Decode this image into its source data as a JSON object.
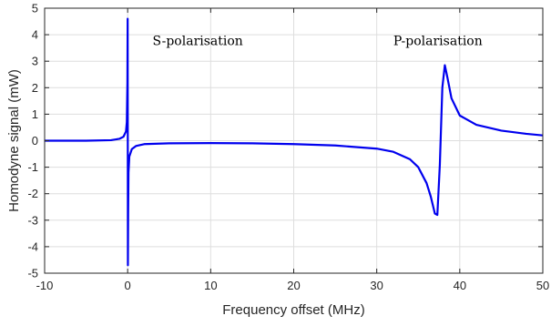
{
  "chart_data": {
    "type": "line",
    "title": "",
    "xlabel": "Frequency offset (MHz)",
    "ylabel": "Homodyne signal (mW)",
    "xlim": [
      -10,
      50
    ],
    "ylim": [
      -5,
      5
    ],
    "xticks": [
      -10,
      0,
      10,
      20,
      30,
      40,
      50
    ],
    "yticks": [
      -5,
      -4,
      -3,
      -2,
      -1,
      0,
      1,
      2,
      3,
      4,
      5
    ],
    "grid": true,
    "legend": "none",
    "annotations": [
      {
        "text": "S-polarisation",
        "x": 3,
        "y": 3.6
      },
      {
        "text": "P-polarisation",
        "x": 32,
        "y": 3.6
      }
    ],
    "series": [
      {
        "color": "#0000ee",
        "x": [
          -10,
          -5,
          -2,
          -1,
          -0.5,
          -0.2,
          -0.1,
          -0.03,
          0,
          0.03,
          0.06,
          0.1,
          0.2,
          0.5,
          1,
          2,
          5,
          10,
          15,
          20,
          25,
          30,
          32,
          34,
          35,
          36,
          36.5,
          37,
          37.3,
          37.6,
          37.9,
          38.2,
          38.5,
          39,
          40,
          42,
          45,
          48,
          50
        ],
        "y": [
          0.0,
          0.0,
          0.02,
          0.07,
          0.15,
          0.35,
          0.7,
          2.2,
          4.6,
          -4.7,
          -2.8,
          -1.2,
          -0.6,
          -0.32,
          -0.2,
          -0.13,
          -0.1,
          -0.09,
          -0.1,
          -0.13,
          -0.18,
          -0.3,
          -0.42,
          -0.7,
          -1.0,
          -1.6,
          -2.1,
          -2.75,
          -2.8,
          -0.9,
          2.0,
          2.85,
          2.4,
          1.6,
          0.95,
          0.6,
          0.38,
          0.26,
          0.2
        ]
      }
    ]
  }
}
